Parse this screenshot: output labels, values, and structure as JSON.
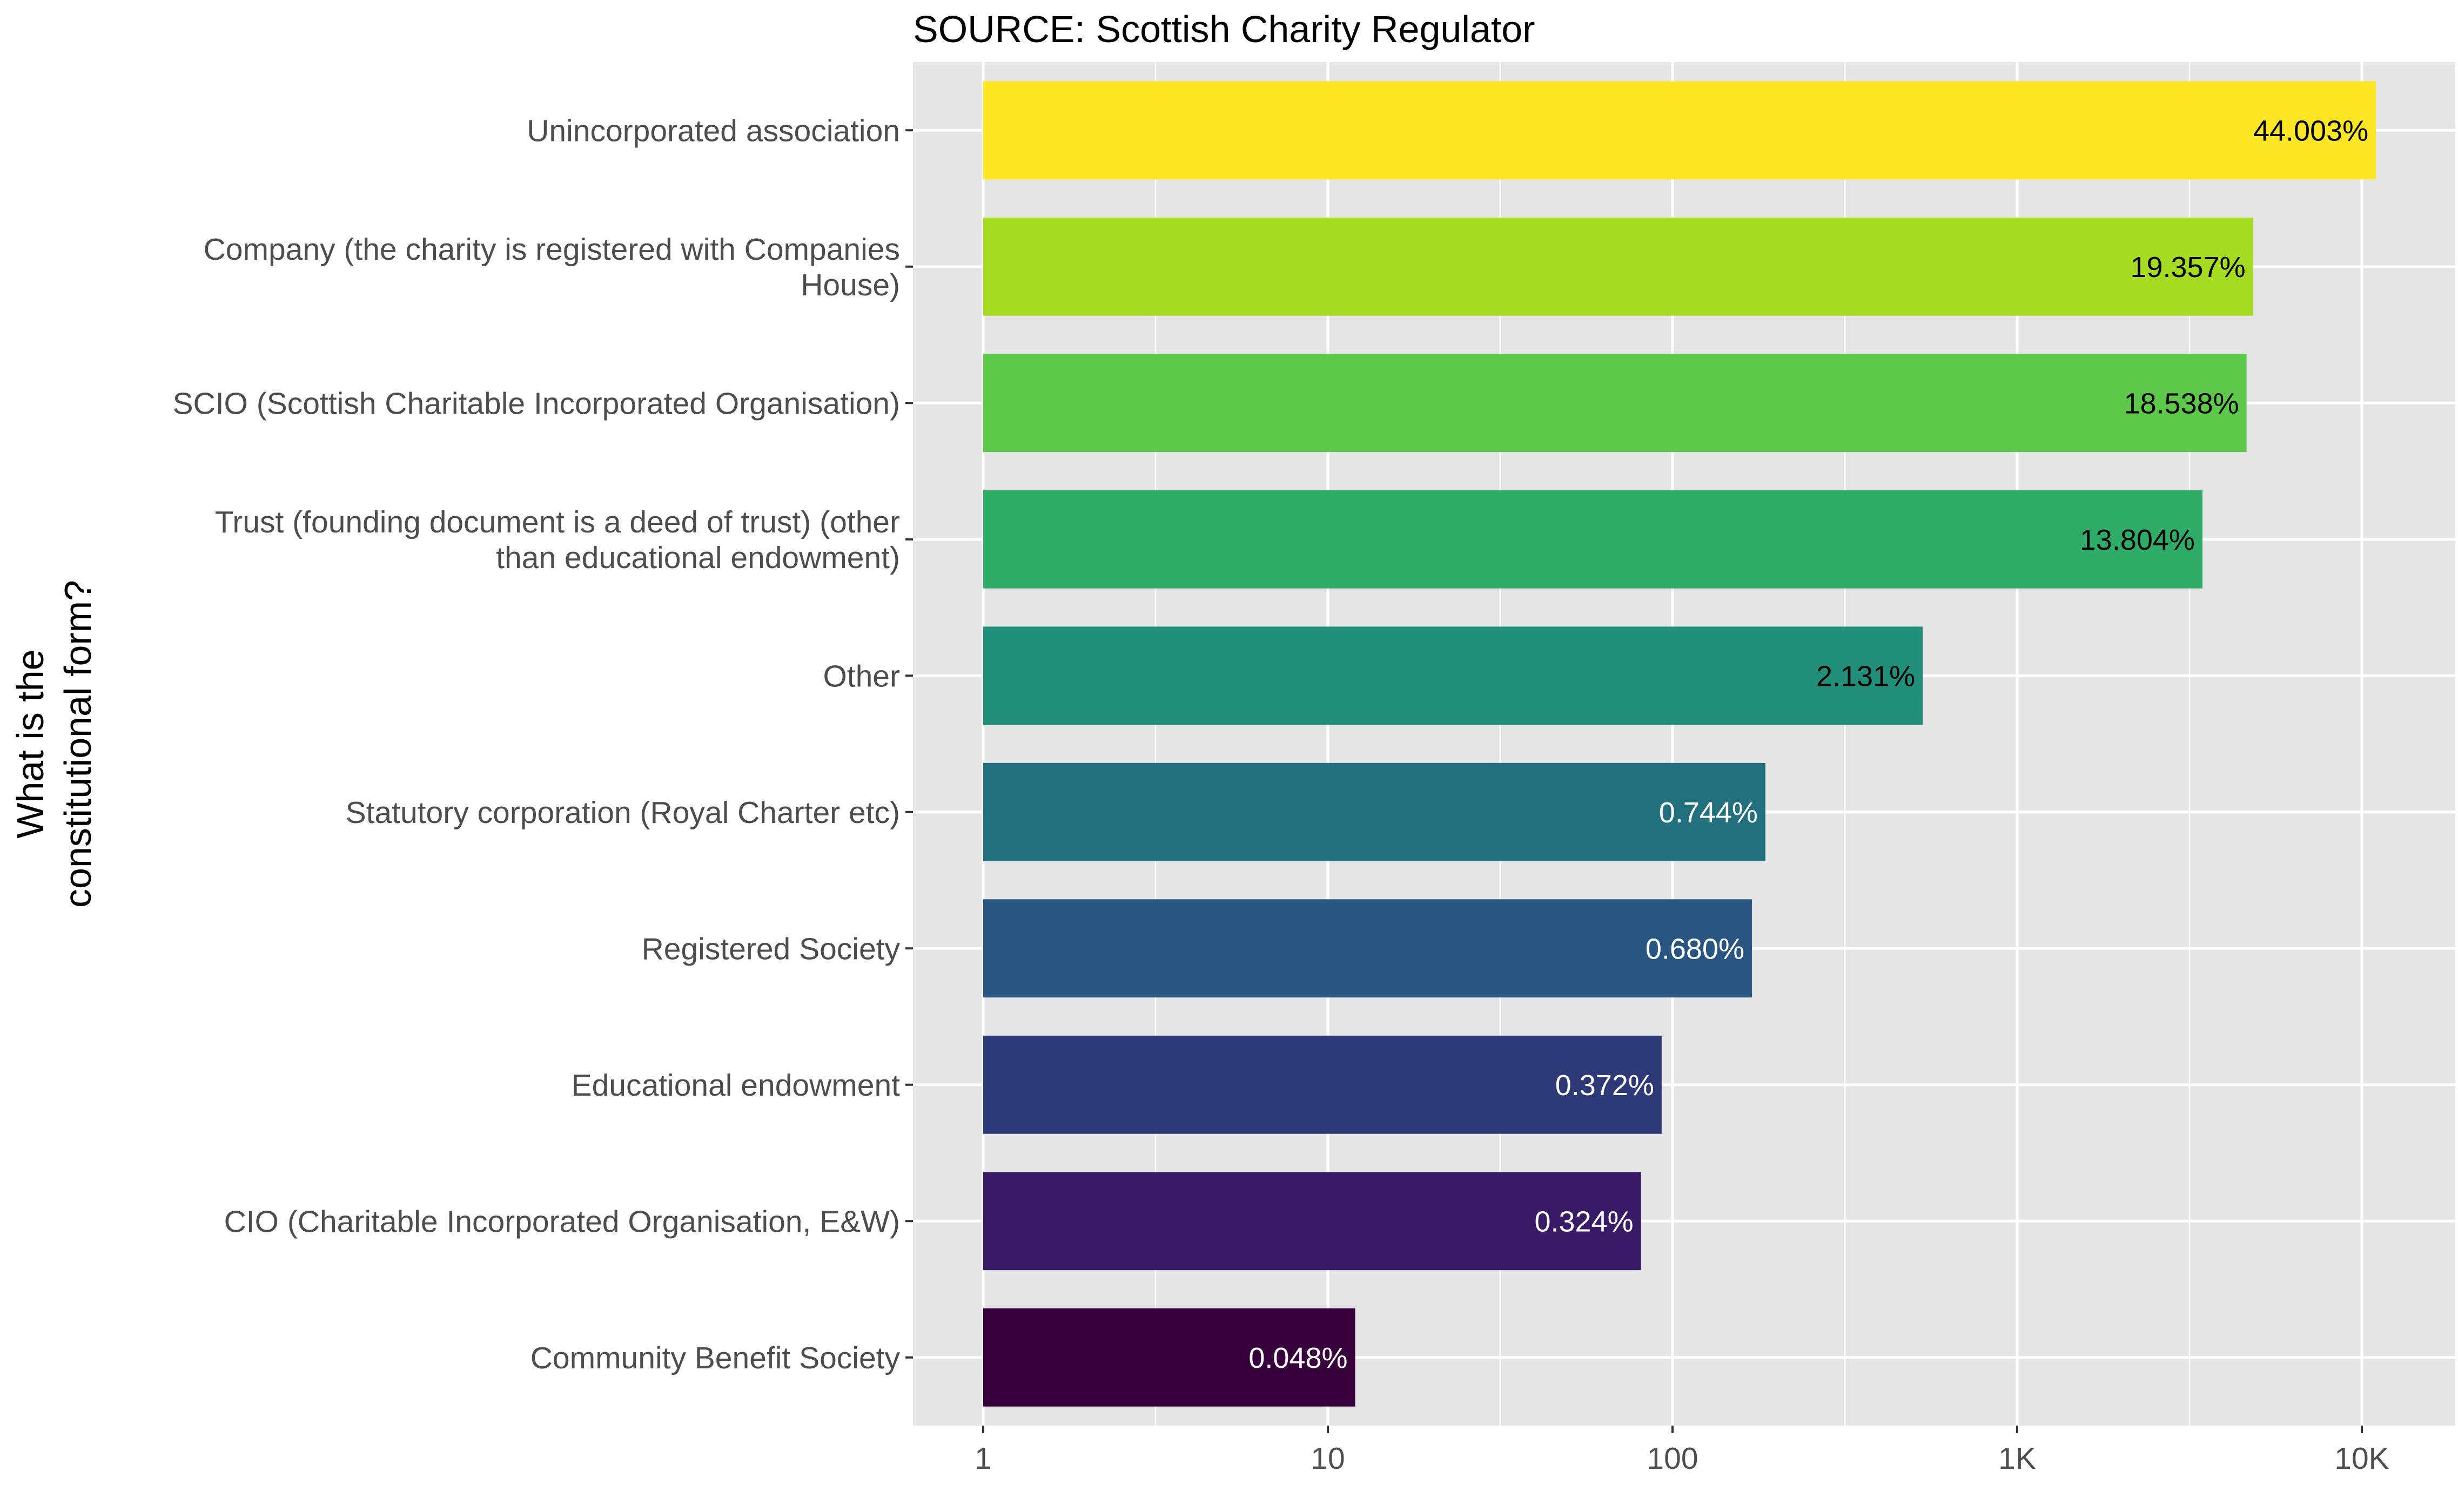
{
  "chart_data": {
    "type": "bar",
    "orientation": "horizontal",
    "title": "SOURCE: Scottish Charity Regulator",
    "ylabel": "What is the\nconstitutional form?",
    "xlabel": "",
    "x_scale": "log10",
    "xlim": [
      1,
      15000
    ],
    "x_ticks": [
      1,
      10,
      100,
      1000,
      10000
    ],
    "x_tick_labels": [
      "1",
      "10",
      "100",
      "1K",
      "10K"
    ],
    "grid": true,
    "legend": "none",
    "categories": [
      "Unincorporated association",
      "Company (the charity is registered with Companies\nHouse)",
      "SCIO (Scottish Charitable Incorporated Organisation)",
      "Trust (founding document is a deed of trust) (other\nthan educational endowment)",
      "Other",
      "Statutory corporation (Royal Charter etc)",
      "Registered Society",
      "Educational endowment",
      "CIO (Charitable Incorporated Organisation, E&W)",
      "Community Benefit Society"
    ],
    "values": [
      10990,
      4835,
      4630,
      3448,
      532,
      186,
      170,
      93,
      81,
      12
    ],
    "labels": [
      "44.003%",
      "19.357%",
      "18.538%",
      "13.804%",
      "2.131%",
      "0.744%",
      "0.680%",
      "0.372%",
      "0.324%",
      "0.048%"
    ],
    "colors": [
      "#FDE725",
      "#A5DB20",
      "#5EC84A",
      "#2FAD68",
      "#218F79",
      "#226F7D",
      "#285582",
      "#2E3A78",
      "#381A67",
      "#37003D"
    ],
    "label_colors": [
      "#000000",
      "#000000",
      "#000000",
      "#000000",
      "#000000",
      "#ffffff",
      "#ffffff",
      "#ffffff",
      "#ffffff",
      "#ffffff"
    ],
    "panel_background": "#E5E5E5",
    "grid_color": "#ffffff"
  }
}
